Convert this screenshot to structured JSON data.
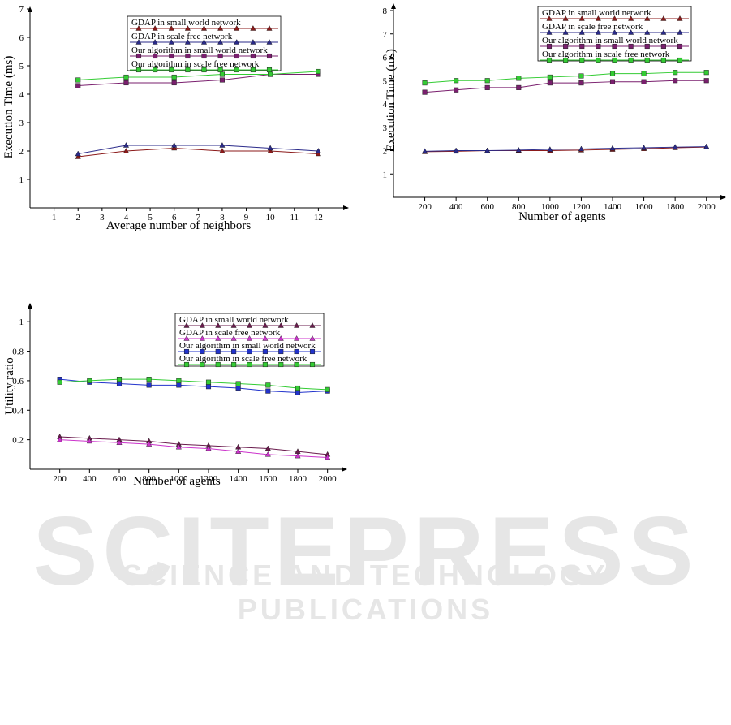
{
  "watermark": {
    "line1": "SCITEPRESS",
    "line2": "SCIENCE AND TECHNOLOGY PUBLICATIONS"
  },
  "colors": {
    "gdap_small": "#8B1A1A",
    "gdap_scale": "#2A2A8A",
    "ours_small": "#7A1F6E",
    "ours_scale": "#33CC33",
    "u_gdap_small": "#6A1B4D",
    "u_gdap_scale": "#CC33CC",
    "u_ours_small": "#2233CC",
    "u_ours_scale": "#33CC33"
  },
  "chart_data": [
    {
      "id": "exec_neighbors",
      "type": "line",
      "xlabel": "Average number of neighbors",
      "ylabel": "Execution Time (ms)",
      "xlim": [
        0,
        13
      ],
      "ylim": [
        0,
        7
      ],
      "xticks": [
        1,
        2,
        3,
        4,
        5,
        6,
        7,
        8,
        9,
        10,
        11,
        12
      ],
      "yticks": [
        1,
        2,
        3,
        4,
        5,
        6,
        7
      ],
      "series": [
        {
          "name": "GDAP in small world network",
          "color": "#8B1A1A",
          "marker": "triangle",
          "x": [
            2,
            4,
            6,
            8,
            10,
            12
          ],
          "values": [
            1.8,
            2.0,
            2.1,
            2.0,
            2.0,
            1.9
          ]
        },
        {
          "name": "GDAP in scale free network",
          "color": "#2A2A8A",
          "marker": "triangle",
          "x": [
            2,
            4,
            6,
            8,
            10,
            12
          ],
          "values": [
            1.9,
            2.2,
            2.2,
            2.2,
            2.1,
            2.0
          ]
        },
        {
          "name": "Our algorithm in small world network",
          "color": "#7A1F6E",
          "marker": "square",
          "x": [
            2,
            4,
            6,
            8,
            10,
            12
          ],
          "values": [
            4.3,
            4.4,
            4.4,
            4.5,
            4.7,
            4.7
          ]
        },
        {
          "name": "Our algorithm in scale free network",
          "color": "#33CC33",
          "marker": "square",
          "x": [
            2,
            4,
            6,
            8,
            10,
            12
          ],
          "values": [
            4.5,
            4.6,
            4.6,
            4.7,
            4.7,
            4.8
          ]
        }
      ]
    },
    {
      "id": "exec_agents",
      "type": "line",
      "xlabel": "Number of agents",
      "ylabel": "Execution Time (ms)",
      "xlim": [
        0,
        2100
      ],
      "ylim": [
        0,
        8
      ],
      "xticks": [
        200,
        400,
        600,
        800,
        1000,
        1200,
        1400,
        1600,
        1800,
        2000
      ],
      "yticks": [
        1,
        2,
        3,
        4,
        5,
        6,
        7,
        8
      ],
      "series": [
        {
          "name": "GDAP in small world network",
          "color": "#8B1A1A",
          "marker": "triangle",
          "x": [
            200,
            400,
            600,
            800,
            1000,
            1200,
            1400,
            1600,
            1800,
            2000
          ],
          "values": [
            1.95,
            1.97,
            2.0,
            2.0,
            2.0,
            2.02,
            2.05,
            2.08,
            2.12,
            2.15
          ]
        },
        {
          "name": "GDAP in scale free network",
          "color": "#2A2A8A",
          "marker": "triangle",
          "x": [
            200,
            400,
            600,
            800,
            1000,
            1200,
            1400,
            1600,
            1800,
            2000
          ],
          "values": [
            1.97,
            2.0,
            2.0,
            2.02,
            2.05,
            2.07,
            2.1,
            2.12,
            2.15,
            2.17
          ]
        },
        {
          "name": "Our algorithm in small world network",
          "color": "#7A1F6E",
          "marker": "square",
          "x": [
            200,
            400,
            600,
            800,
            1000,
            1200,
            1400,
            1600,
            1800,
            2000
          ],
          "values": [
            4.5,
            4.6,
            4.7,
            4.7,
            4.9,
            4.9,
            4.95,
            4.95,
            5.0,
            5.0
          ]
        },
        {
          "name": "Our algorithm in scale free network",
          "color": "#33CC33",
          "marker": "square",
          "x": [
            200,
            400,
            600,
            800,
            1000,
            1200,
            1400,
            1600,
            1800,
            2000
          ],
          "values": [
            4.9,
            5.0,
            5.0,
            5.1,
            5.15,
            5.2,
            5.3,
            5.3,
            5.35,
            5.35
          ]
        }
      ]
    },
    {
      "id": "utility_agents",
      "type": "line",
      "xlabel": "Number of agents",
      "ylabel": "Utility ratio",
      "xlim": [
        0,
        2100
      ],
      "ylim": [
        0,
        1.1
      ],
      "xticks": [
        200,
        400,
        600,
        800,
        1000,
        1200,
        1400,
        1600,
        1800,
        2000
      ],
      "yticks": [
        0.2,
        0.4,
        0.6,
        0.8,
        1
      ],
      "series": [
        {
          "name": "GDAP in small world network",
          "color": "#6A1B4D",
          "marker": "triangle",
          "x": [
            200,
            400,
            600,
            800,
            1000,
            1200,
            1400,
            1600,
            1800,
            2000
          ],
          "values": [
            0.22,
            0.21,
            0.2,
            0.19,
            0.17,
            0.16,
            0.15,
            0.14,
            0.12,
            0.1
          ]
        },
        {
          "name": "GDAP in scale free network",
          "color": "#CC33CC",
          "marker": "triangle",
          "x": [
            200,
            400,
            600,
            800,
            1000,
            1200,
            1400,
            1600,
            1800,
            2000
          ],
          "values": [
            0.2,
            0.19,
            0.18,
            0.17,
            0.15,
            0.14,
            0.12,
            0.1,
            0.09,
            0.08
          ]
        },
        {
          "name": "Our algorithm in small world network",
          "color": "#2233CC",
          "marker": "square",
          "x": [
            200,
            400,
            600,
            800,
            1000,
            1200,
            1400,
            1600,
            1800,
            2000
          ],
          "values": [
            0.61,
            0.59,
            0.58,
            0.57,
            0.57,
            0.56,
            0.55,
            0.53,
            0.52,
            0.53
          ]
        },
        {
          "name": "Our algorithm in scale free network",
          "color": "#33CC33",
          "marker": "square",
          "x": [
            200,
            400,
            600,
            800,
            1000,
            1200,
            1400,
            1600,
            1800,
            2000
          ],
          "values": [
            0.59,
            0.6,
            0.61,
            0.61,
            0.6,
            0.59,
            0.58,
            0.57,
            0.55,
            0.54
          ]
        }
      ]
    }
  ]
}
